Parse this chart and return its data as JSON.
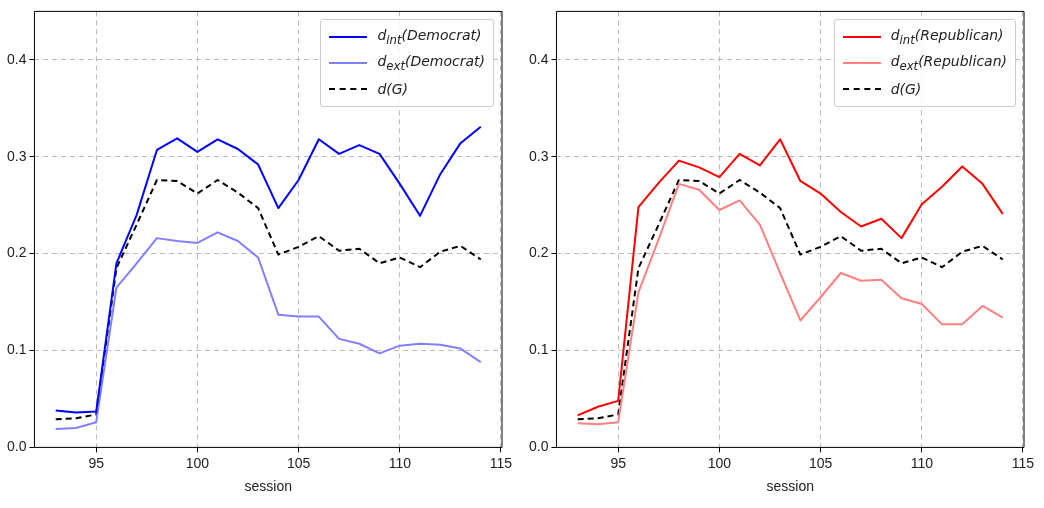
{
  "chart_data": [
    {
      "type": "line",
      "xlabel": "session",
      "x": [
        93,
        94,
        95,
        96,
        97,
        98,
        99,
        100,
        101,
        102,
        103,
        104,
        105,
        106,
        107,
        108,
        109,
        110,
        111,
        112,
        113,
        114
      ],
      "xlim": [
        91.95,
        115.05
      ],
      "xticks": [
        95,
        100,
        105,
        110,
        115
      ],
      "ylim": [
        0,
        0.45
      ],
      "yticks": [
        {
          "value": 0,
          "label": "0.0"
        },
        0.1,
        0.2,
        0.3,
        0.4
      ],
      "grid": true,
      "legend": "top right",
      "marker": "none",
      "series": [
        {
          "name": "d$_{int}$(Democrat)",
          "color": "#0000ff",
          "line_style": "solid",
          "values": [
            0.038,
            0.036,
            0.037,
            0.19,
            0.24,
            0.307,
            0.319,
            0.305,
            0.318,
            0.308,
            0.292,
            0.247,
            0.276,
            0.318,
            0.303,
            0.312,
            0.303,
            0.272,
            0.239,
            0.282,
            0.314,
            0.331
          ]
        },
        {
          "name": "d$_{ext}$(Democrat)",
          "color": "#8080ff",
          "line_style": "solid",
          "values": [
            0.019,
            0.02,
            0.026,
            0.165,
            0.19,
            0.216,
            0.213,
            0.211,
            0.222,
            0.213,
            0.196,
            0.137,
            0.135,
            0.135,
            0.112,
            0.107,
            0.097,
            0.105,
            0.107,
            0.106,
            0.102,
            0.088
          ]
        },
        {
          "name": "d(G)",
          "color": "#000000",
          "line_style": "dashed",
          "values": [
            0.029,
            0.03,
            0.034,
            0.185,
            0.23,
            0.276,
            0.275,
            0.262,
            0.276,
            0.263,
            0.247,
            0.199,
            0.207,
            0.218,
            0.203,
            0.205,
            0.19,
            0.196,
            0.186,
            0.202,
            0.208,
            0.194
          ]
        }
      ]
    },
    {
      "type": "line",
      "xlabel": "session",
      "x": [
        93,
        94,
        95,
        96,
        97,
        98,
        99,
        100,
        101,
        102,
        103,
        104,
        105,
        106,
        107,
        108,
        109,
        110,
        111,
        112,
        113,
        114
      ],
      "xlim": [
        91.95,
        115.05
      ],
      "xticks": [
        95,
        100,
        105,
        110,
        115
      ],
      "ylim": [
        0,
        0.45
      ],
      "yticks": [
        {
          "value": 0,
          "label": "0.0"
        },
        0.1,
        0.2,
        0.3,
        0.4
      ],
      "grid": true,
      "legend": "top right",
      "marker": "none",
      "series": [
        {
          "name": "d$_{int}$(Republican)",
          "color": "#ff0000",
          "line_style": "solid",
          "values": [
            0.033,
            0.042,
            0.048,
            0.248,
            0.273,
            0.296,
            0.289,
            0.279,
            0.303,
            0.291,
            0.318,
            0.275,
            0.262,
            0.243,
            0.228,
            0.236,
            0.216,
            0.251,
            0.269,
            0.29,
            0.272,
            0.241
          ]
        },
        {
          "name": "d$_{ext}$(Republican)",
          "color": "#ff8080",
          "line_style": "solid",
          "values": [
            0.025,
            0.024,
            0.026,
            0.16,
            0.215,
            0.272,
            0.266,
            0.245,
            0.255,
            0.23,
            0.18,
            0.131,
            0.155,
            0.18,
            0.172,
            0.173,
            0.154,
            0.148,
            0.127,
            0.127,
            0.146,
            0.134
          ]
        },
        {
          "name": "d(G)",
          "color": "#000000",
          "line_style": "dashed",
          "values": [
            0.029,
            0.03,
            0.034,
            0.185,
            0.23,
            0.276,
            0.275,
            0.262,
            0.276,
            0.263,
            0.247,
            0.199,
            0.207,
            0.218,
            0.203,
            0.205,
            0.19,
            0.196,
            0.186,
            0.202,
            0.208,
            0.194
          ]
        }
      ]
    }
  ]
}
